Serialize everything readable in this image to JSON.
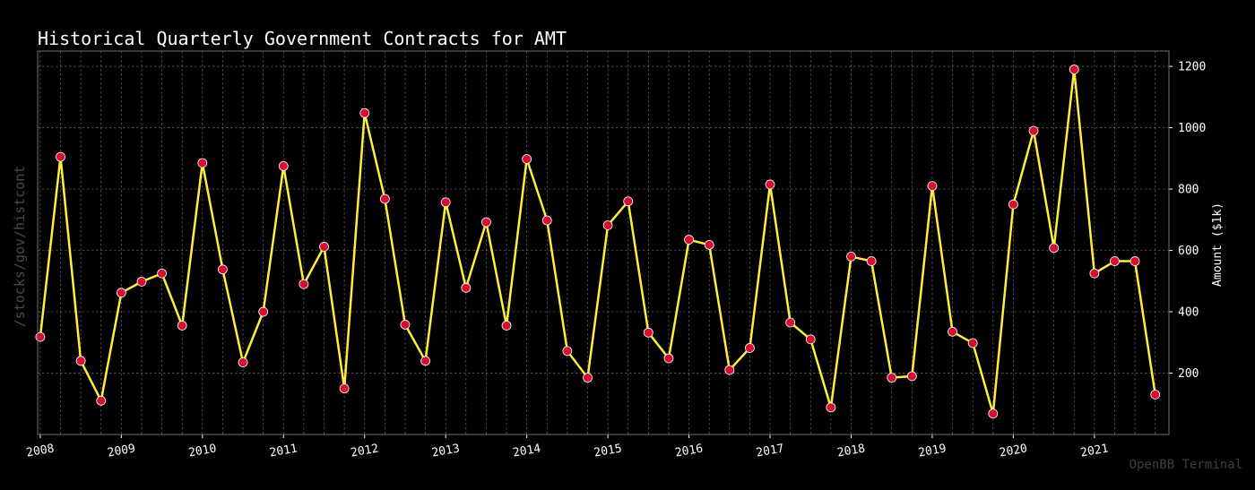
{
  "chart_data": {
    "type": "line",
    "title": "Historical Quarterly Government Contracts for AMT",
    "ylabel": "Amount ($1k)",
    "xlabel": "",
    "side_label": "/stocks/gov/histcont",
    "brand": "OpenBB Terminal",
    "ylim": [
      0,
      1250
    ],
    "yticks": [
      200,
      400,
      600,
      800,
      1000,
      1200
    ],
    "x_year_labels": [
      "2008",
      "2009",
      "2010",
      "2011",
      "2012",
      "2013",
      "2014",
      "2015",
      "2016",
      "2017",
      "2018",
      "2019",
      "2020",
      "2021"
    ],
    "x_start": 2008.0,
    "quarter_step": 0.25,
    "series": [
      {
        "name": "AMT",
        "values": [
          318,
          905,
          240,
          110,
          462,
          498,
          525,
          355,
          885,
          538,
          235,
          400,
          875,
          490,
          612,
          150,
          1048,
          768,
          358,
          240,
          757,
          478,
          692,
          355,
          898,
          698,
          272,
          185,
          682,
          760,
          332,
          248,
          635,
          618,
          210,
          282,
          815,
          365,
          310,
          88,
          580,
          565,
          185,
          190,
          810,
          335,
          298,
          68,
          750,
          990,
          608,
          1190,
          525,
          565,
          565,
          130
        ]
      }
    ],
    "colors": {
      "background": "#000000",
      "line": "#ffee3a",
      "marker": "#d40f2f",
      "grid": "#8a8a8a"
    },
    "grid": true
  }
}
